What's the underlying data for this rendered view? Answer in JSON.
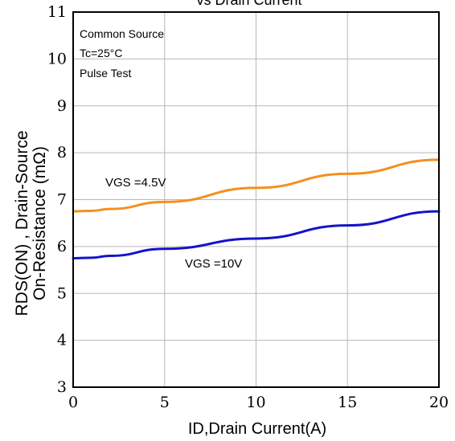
{
  "chart_data": {
    "type": "line",
    "title": "vs Drain Current",
    "xlabel": "ID,Drain Current(A)",
    "ylabel_line1": "RDS(ON) , Drain-Source",
    "ylabel_line2": "On-Resistance (mΩ)",
    "xlim": [
      0,
      20
    ],
    "ylim": [
      3,
      11
    ],
    "xticks": [
      0,
      5,
      10,
      15,
      20
    ],
    "yticks": [
      3,
      4,
      5,
      6,
      7,
      8,
      9,
      10,
      11
    ],
    "grid": true,
    "notes": [
      "Common Source",
      "Tc=25°C",
      "Pulse Test"
    ],
    "series": [
      {
        "name": "VGS =4.5V",
        "color": "#f39020",
        "x": [
          0,
          1,
          2,
          5,
          10,
          15,
          20
        ],
        "y": [
          6.75,
          6.76,
          6.8,
          6.95,
          7.25,
          7.55,
          7.85
        ]
      },
      {
        "name": "VGS =10V",
        "color": "#1414c8",
        "x": [
          0,
          1,
          2,
          5,
          10,
          15,
          20
        ],
        "y": [
          5.75,
          5.76,
          5.8,
          5.95,
          6.17,
          6.45,
          6.75
        ]
      }
    ]
  }
}
